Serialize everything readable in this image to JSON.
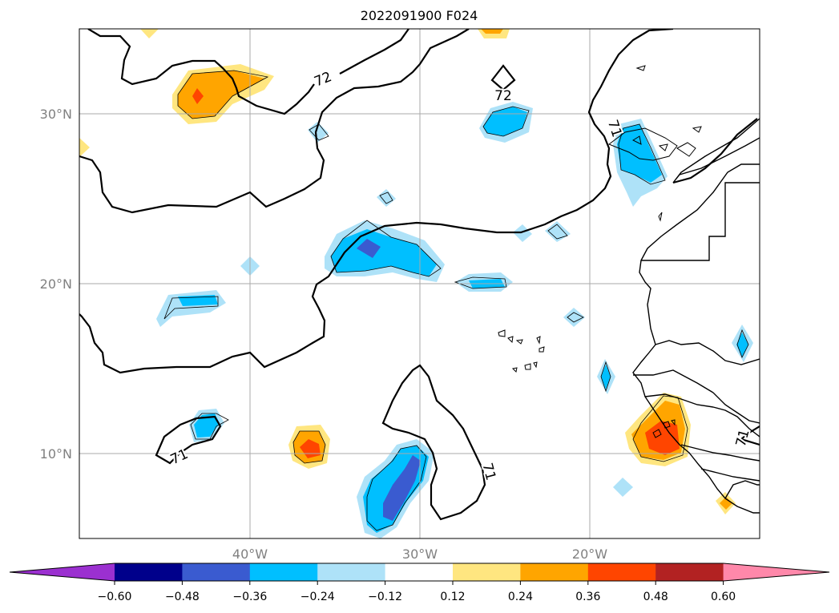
{
  "title": "2022091900 F024",
  "latitude_labels": [
    "30°N",
    "20°N",
    "10°N"
  ],
  "longitude_labels": [
    "40°W",
    "30°W",
    "20°W"
  ],
  "contour_labels": [
    "72",
    "72",
    "71",
    "71",
    "71",
    "71"
  ],
  "colorbar": {
    "ticks": [
      "−0.60",
      "−0.48",
      "−0.36",
      "−0.24",
      "−0.12",
      "0.12",
      "0.24",
      "0.36",
      "0.48",
      "0.60"
    ],
    "colors": [
      "#9b30d0",
      "#00008b",
      "#3a5bd0",
      "#00bfff",
      "#aee2f8",
      "#ffffff",
      "#ffe680",
      "#ffa500",
      "#ff4500",
      "#b22222",
      "#ff88aa"
    ]
  }
}
